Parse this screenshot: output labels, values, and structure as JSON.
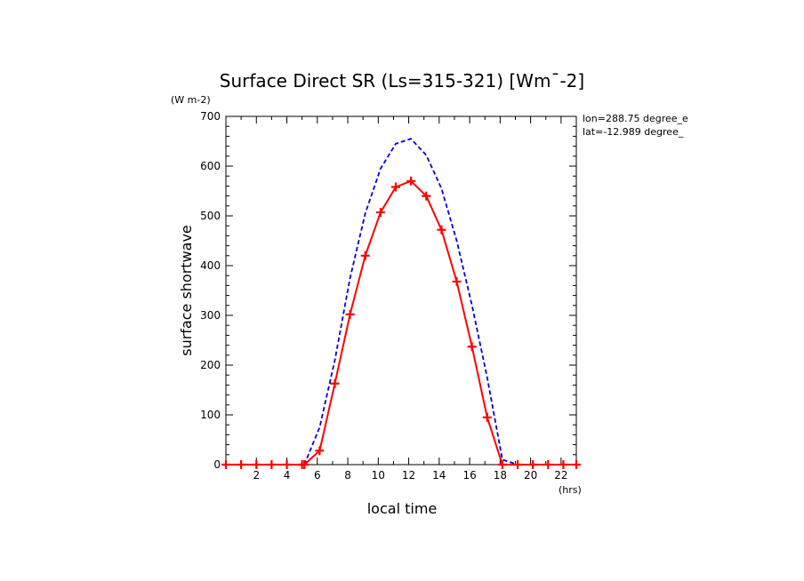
{
  "chart_data": {
    "type": "line",
    "title": "Surface Direct SR (Ls=315-321) [Wm¯-2]",
    "ylabel": "surface shortwave",
    "yunits": "(W m-2)",
    "xlabel": "local time",
    "xunits": "(hrs)",
    "annotations": [
      "lon=288.75 degree_e",
      "lat=-12.989 degree_"
    ],
    "xlim": [
      0,
      23
    ],
    "ylim": [
      0,
      700
    ],
    "xticks": [
      "2",
      "4",
      "6",
      "8",
      "10",
      "12",
      "14",
      "16",
      "18",
      "20",
      "22"
    ],
    "yticks": [
      "0",
      "100",
      "200",
      "300",
      "400",
      "500",
      "600",
      "700"
    ],
    "grid": false,
    "series": [
      {
        "color": "#0000dd",
        "style": "dashed",
        "x": [
          0,
          1,
          2,
          3,
          4,
          5,
          5.15,
          6.15,
          7.15,
          8.15,
          9.15,
          10.15,
          11.15,
          12.15,
          13.15,
          14.15,
          15.15,
          16.15,
          17.15,
          18.15,
          19.15,
          20.15,
          21.15,
          22.15,
          23
        ],
        "values": [
          0,
          0,
          0,
          0,
          0,
          0,
          0,
          75,
          210,
          375,
          505,
          595,
          645,
          655,
          622,
          555,
          450,
          320,
          175,
          10,
          0,
          0,
          0,
          0,
          0
        ]
      },
      {
        "color": "#ff0000",
        "style": "solid",
        "marker": "+",
        "x": [
          0,
          1,
          2,
          3,
          4,
          5,
          5.15,
          6.15,
          7.15,
          8.15,
          9.15,
          10.15,
          11.15,
          12.15,
          13.15,
          14.15,
          15.15,
          16.15,
          17.15,
          18.15,
          19.15,
          20.15,
          21.15,
          22.15,
          23
        ],
        "values": [
          0,
          0,
          0,
          0,
          0,
          0,
          0,
          28,
          163,
          302,
          420,
          507,
          558,
          570,
          540,
          472,
          368,
          237,
          95,
          0,
          0,
          0,
          0,
          0,
          0
        ]
      }
    ]
  }
}
